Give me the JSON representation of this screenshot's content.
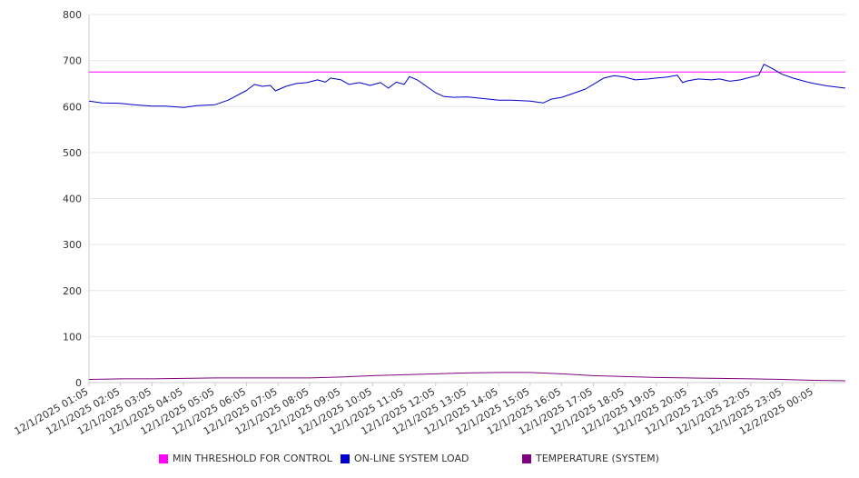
{
  "colors": {
    "threshold": "#ff00ff",
    "load": "#0000cc",
    "temperature": "#800080",
    "grid": "#e6e6e6",
    "axis": "#cccccc"
  },
  "chart_data": {
    "type": "line",
    "title": "",
    "xlabel": "",
    "ylabel": "",
    "ylim": [
      0,
      800
    ],
    "yticks": [
      0,
      100,
      200,
      300,
      400,
      500,
      600,
      700,
      800
    ],
    "grid": true,
    "legend_position": "bottom",
    "x_tick_labels": [
      "12/1/2025 01:05",
      "12/1/2025 02:05",
      "12/1/2025 03:05",
      "12/1/2025 04:05",
      "12/1/2025 05:05",
      "12/1/2025 06:05",
      "12/1/2025 07:05",
      "12/1/2025 08:05",
      "12/1/2025 09:05",
      "12/1/2025 10:05",
      "12/1/2025 11:05",
      "12/1/2025 12:05",
      "12/1/2025 13:05",
      "12/1/2025 14:05",
      "12/1/2025 15:05",
      "12/1/2025 16:05",
      "12/1/2025 17:05",
      "12/1/2025 18:05",
      "12/1/2025 19:05",
      "12/1/2025 20:05",
      "12/1/2025 21:05",
      "12/1/2025 22:05",
      "12/1/2025 23:05",
      "12/2/2025 00:05"
    ],
    "x_range": [
      "12/1/2025 01:05",
      "12/2/2025 01:05"
    ],
    "series": [
      {
        "name": "MIN THRESHOLD FOR CONTROL",
        "color": "#ff00ff",
        "points": [
          [
            "12/1/2025 01:05",
            675
          ],
          [
            "12/2/2025 01:05",
            675
          ]
        ]
      },
      {
        "name": "ON-LINE SYSTEM LOAD",
        "color": "#0000cc",
        "points": [
          [
            "12/1/2025 01:05",
            612
          ],
          [
            "12/1/2025 01:30",
            608
          ],
          [
            "12/1/2025 02:05",
            607
          ],
          [
            "12/1/2025 02:30",
            604
          ],
          [
            "12/1/2025 03:05",
            601
          ],
          [
            "12/1/2025 03:30",
            601
          ],
          [
            "12/1/2025 04:05",
            598
          ],
          [
            "12/1/2025 04:30",
            602
          ],
          [
            "12/1/2025 05:05",
            604
          ],
          [
            "12/1/2025 05:30",
            614
          ],
          [
            "12/1/2025 06:05",
            635
          ],
          [
            "12/1/2025 06:20",
            648
          ],
          [
            "12/1/2025 06:35",
            644
          ],
          [
            "12/1/2025 06:50",
            646
          ],
          [
            "12/1/2025 07:00",
            634
          ],
          [
            "12/1/2025 07:20",
            644
          ],
          [
            "12/1/2025 07:40",
            650
          ],
          [
            "12/1/2025 08:00",
            652
          ],
          [
            "12/1/2025 08:20",
            658
          ],
          [
            "12/1/2025 08:35",
            653
          ],
          [
            "12/1/2025 08:45",
            662
          ],
          [
            "12/1/2025 09:05",
            658
          ],
          [
            "12/1/2025 09:20",
            648
          ],
          [
            "12/1/2025 09:40",
            652
          ],
          [
            "12/1/2025 10:00",
            646
          ],
          [
            "12/1/2025 10:20",
            652
          ],
          [
            "12/1/2025 10:35",
            640
          ],
          [
            "12/1/2025 10:50",
            653
          ],
          [
            "12/1/2025 11:05",
            648
          ],
          [
            "12/1/2025 11:15",
            665
          ],
          [
            "12/1/2025 11:30",
            658
          ],
          [
            "12/1/2025 11:50",
            642
          ],
          [
            "12/1/2025 12:05",
            630
          ],
          [
            "12/1/2025 12:20",
            622
          ],
          [
            "12/1/2025 12:40",
            620
          ],
          [
            "12/1/2025 13:05",
            621
          ],
          [
            "12/1/2025 13:30",
            618
          ],
          [
            "12/1/2025 14:05",
            614
          ],
          [
            "12/1/2025 14:30",
            614
          ],
          [
            "12/1/2025 15:05",
            612
          ],
          [
            "12/1/2025 15:30",
            608
          ],
          [
            "12/1/2025 15:45",
            616
          ],
          [
            "12/1/2025 16:05",
            620
          ],
          [
            "12/1/2025 16:30",
            630
          ],
          [
            "12/1/2025 16:50",
            638
          ],
          [
            "12/1/2025 17:05",
            648
          ],
          [
            "12/1/2025 17:25",
            662
          ],
          [
            "12/1/2025 17:45",
            667
          ],
          [
            "12/1/2025 18:05",
            664
          ],
          [
            "12/1/2025 18:25",
            658
          ],
          [
            "12/1/2025 18:50",
            660
          ],
          [
            "12/1/2025 19:05",
            662
          ],
          [
            "12/1/2025 19:25",
            664
          ],
          [
            "12/1/2025 19:45",
            668
          ],
          [
            "12/1/2025 19:55",
            652
          ],
          [
            "12/1/2025 20:05",
            656
          ],
          [
            "12/1/2025 20:25",
            660
          ],
          [
            "12/1/2025 20:50",
            658
          ],
          [
            "12/1/2025 21:05",
            660
          ],
          [
            "12/1/2025 21:25",
            655
          ],
          [
            "12/1/2025 21:45",
            658
          ],
          [
            "12/1/2025 22:05",
            664
          ],
          [
            "12/1/2025 22:20",
            668
          ],
          [
            "12/1/2025 22:30",
            692
          ],
          [
            "12/1/2025 22:45",
            683
          ],
          [
            "12/1/2025 23:05",
            670
          ],
          [
            "12/1/2025 23:25",
            662
          ],
          [
            "12/1/2025 23:50",
            654
          ],
          [
            "12/2/2025 00:05",
            650
          ],
          [
            "12/2/2025 00:30",
            645
          ],
          [
            "12/2/2025 01:05",
            640
          ]
        ]
      },
      {
        "name": "TEMPERATURE (SYSTEM)",
        "color": "#800080",
        "points": [
          [
            "12/1/2025 01:05",
            7
          ],
          [
            "12/1/2025 02:05",
            8
          ],
          [
            "12/1/2025 03:05",
            8
          ],
          [
            "12/1/2025 04:05",
            9
          ],
          [
            "12/1/2025 05:05",
            10
          ],
          [
            "12/1/2025 06:05",
            10
          ],
          [
            "12/1/2025 07:05",
            10
          ],
          [
            "12/1/2025 08:05",
            10
          ],
          [
            "12/1/2025 09:05",
            12
          ],
          [
            "12/1/2025 10:05",
            15
          ],
          [
            "12/1/2025 11:05",
            17
          ],
          [
            "12/1/2025 12:05",
            19
          ],
          [
            "12/1/2025 13:05",
            21
          ],
          [
            "12/1/2025 14:05",
            22
          ],
          [
            "12/1/2025 15:05",
            22
          ],
          [
            "12/1/2025 16:05",
            19
          ],
          [
            "12/1/2025 17:05",
            15
          ],
          [
            "12/1/2025 18:05",
            13
          ],
          [
            "12/1/2025 19:05",
            11
          ],
          [
            "12/1/2025 20:05",
            10
          ],
          [
            "12/1/2025 21:05",
            9
          ],
          [
            "12/1/2025 22:05",
            8
          ],
          [
            "12/1/2025 23:05",
            7
          ],
          [
            "12/2/2025 00:05",
            5
          ],
          [
            "12/2/2025 01:05",
            4
          ]
        ]
      }
    ]
  }
}
